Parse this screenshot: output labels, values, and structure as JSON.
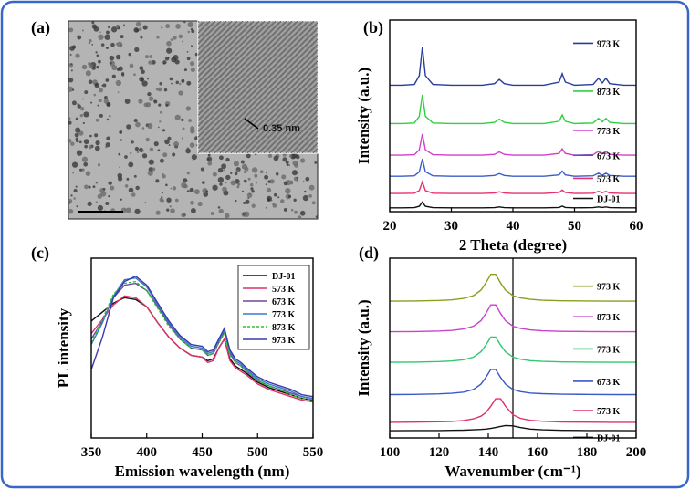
{
  "image_panel": {
    "label": "(a)",
    "annotation": "0.35 nm"
  },
  "chart_data": [
    {
      "type": "line",
      "label": "(b)",
      "xlabel": "2 Theta (degree)",
      "ylabel": "Intensity (a.u.)",
      "x": [
        20,
        22,
        24,
        24.8,
        25.3,
        25.8,
        27,
        30,
        35,
        37,
        37.8,
        38.6,
        40,
        45,
        47.5,
        48,
        48.5,
        50,
        53,
        53.9,
        54.5,
        55.1,
        55.7,
        58,
        60
      ],
      "xlim": [
        20,
        60
      ],
      "xticks": [
        20,
        30,
        40,
        50,
        60
      ],
      "ylim": [
        0,
        100
      ],
      "legend": "right",
      "series": [
        {
          "name": "DJ-01",
          "color": "#111111",
          "values": [
            2,
            2,
            2.1,
            2.8,
            5,
            2.8,
            2.1,
            2,
            2,
            2.1,
            2.5,
            2.1,
            2,
            2,
            2.2,
            2.9,
            2.2,
            2,
            2.1,
            2.5,
            2.2,
            2.5,
            2.1,
            2,
            2
          ]
        },
        {
          "name": "573 K",
          "color": "#e8306e",
          "values": [
            9.5,
            9.5,
            9.6,
            11,
            15.5,
            11,
            9.6,
            9.5,
            9.5,
            9.7,
            10.4,
            9.7,
            9.5,
            9.5,
            10,
            11.3,
            10,
            9.5,
            9.6,
            10.6,
            9.9,
            10.6,
            9.7,
            9.5,
            9.5
          ]
        },
        {
          "name": "673 K",
          "color": "#3a5ec8",
          "values": [
            18.5,
            18.5,
            18.7,
            20.8,
            27.5,
            20.8,
            18.7,
            18.5,
            18.5,
            18.9,
            19.9,
            18.9,
            18.5,
            18.5,
            19.2,
            21.2,
            19.2,
            18.5,
            18.7,
            20.1,
            19,
            20.1,
            18.9,
            18.5,
            18.5
          ]
        },
        {
          "name": "773 K",
          "color": "#d040c8",
          "values": [
            29.5,
            29.5,
            29.7,
            32.3,
            40.5,
            32.3,
            29.7,
            29.5,
            29.5,
            29.9,
            31.2,
            29.9,
            29.5,
            29.5,
            30.4,
            32.8,
            30.4,
            29.5,
            29.7,
            31.5,
            30.2,
            31.5,
            29.9,
            29.5,
            29.5
          ]
        },
        {
          "name": "873 K",
          "color": "#30d040",
          "values": [
            46,
            46,
            46.3,
            49.8,
            61,
            49.8,
            46.3,
            46,
            46,
            46.6,
            48.3,
            46.6,
            46,
            46,
            47.2,
            50.5,
            47.2,
            46,
            46.3,
            48.7,
            46.9,
            48.7,
            46.6,
            46,
            46
          ]
        },
        {
          "name": "973 K",
          "color": "#283c9a",
          "values": [
            66,
            66,
            66.4,
            71,
            86,
            71,
            66.4,
            66,
            66,
            66.8,
            69,
            66.8,
            66,
            66,
            67.6,
            72,
            67.6,
            66,
            66.4,
            69.6,
            67.2,
            69.6,
            66.8,
            66,
            66
          ]
        }
      ]
    },
    {
      "type": "line",
      "label": "(c)",
      "xlabel": "Emission wavelength (nm)",
      "ylabel": "PL intensity",
      "x": [
        350,
        360,
        370,
        380,
        390,
        400,
        410,
        420,
        430,
        440,
        450,
        455,
        460,
        465,
        470,
        475,
        480,
        485,
        490,
        500,
        510,
        520,
        530,
        540,
        550
      ],
      "xlim": [
        350,
        550
      ],
      "xticks": [
        350,
        400,
        450,
        500,
        550
      ],
      "ylim": [
        0,
        100
      ],
      "legend": "upper right",
      "series": [
        {
          "name": "DJ-01",
          "color": "#111111",
          "values": [
            65,
            70,
            75,
            78,
            77,
            73,
            64,
            56,
            50,
            46,
            45,
            43,
            44,
            50,
            55,
            44,
            40,
            38,
            36,
            31,
            28,
            26,
            24,
            22,
            21
          ]
        },
        {
          "name": "573 K",
          "color": "#e0306a",
          "values": [
            58,
            66,
            74,
            79,
            78,
            73,
            64,
            56,
            50,
            46,
            45,
            42,
            43,
            50,
            55,
            43,
            39,
            37,
            35,
            30,
            27,
            25,
            23,
            21,
            20
          ]
        },
        {
          "name": "673 K",
          "color": "#6a4a9a",
          "values": [
            55,
            65,
            78,
            85,
            86,
            82,
            73,
            63,
            55,
            50,
            49,
            46,
            47,
            53,
            59,
            47,
            42,
            40,
            37,
            32,
            29,
            27,
            25,
            23,
            22
          ]
        },
        {
          "name": "773 K",
          "color": "#3a7ac8",
          "values": [
            52,
            64,
            79,
            88,
            89,
            84,
            74,
            64,
            56,
            51,
            50,
            47,
            48,
            54,
            60,
            48,
            43,
            41,
            38,
            33,
            30,
            28,
            26,
            23,
            22
          ]
        },
        {
          "name": "873 K",
          "color": "#30c030",
          "dashed": true,
          "values": [
            53,
            66,
            80,
            86,
            87,
            82,
            72,
            62,
            55,
            50,
            49,
            46,
            47,
            53,
            58,
            46,
            42,
            40,
            37,
            32,
            29,
            27,
            24,
            22,
            21
          ]
        },
        {
          "name": "973 K",
          "color": "#3a3ab0",
          "values": [
            38,
            56,
            78,
            87,
            90,
            85,
            75,
            65,
            57,
            52,
            51,
            48,
            49,
            55,
            61,
            49,
            44,
            42,
            39,
            34,
            31,
            29,
            27,
            24,
            23
          ]
        }
      ]
    },
    {
      "type": "line",
      "label": "(d)",
      "xlabel": "Wavenumber (cm⁻¹)",
      "ylabel": "Intensity (a.u.)",
      "x": [
        100,
        110,
        120,
        125,
        130,
        134,
        137,
        139,
        141,
        143,
        145,
        147,
        150,
        153,
        157,
        162,
        170,
        180,
        190,
        200
      ],
      "xlim": [
        100,
        200
      ],
      "xticks": [
        100,
        120,
        140,
        160,
        180,
        200
      ],
      "ylim": [
        0,
        100
      ],
      "legend": "right",
      "vline": 150,
      "series": [
        {
          "name": "DJ-01",
          "color": "#111111",
          "values": [
            4,
            4.1,
            4.1,
            4.2,
            4.3,
            4.5,
            4.7,
            4.9,
            5.3,
            5.8,
            6.4,
            6.9,
            6.7,
            5.8,
            4.9,
            4.5,
            4.2,
            4.1,
            4.1,
            4
          ]
        },
        {
          "name": "573 K",
          "color": "#e0306a",
          "values": [
            8.7,
            8.8,
            9,
            9.2,
            9.7,
            10.6,
            12.1,
            14.1,
            17.6,
            21.8,
            21.8,
            17.6,
            12.9,
            10.9,
            9.8,
            9.3,
            8.9,
            8.8,
            8.7,
            8.7
          ]
        },
        {
          "name": "673 K",
          "color": "#3a5ac8",
          "values": [
            24.1,
            24.2,
            24.5,
            24.8,
            25.5,
            27,
            29.9,
            33.6,
            38.1,
            38.1,
            33.6,
            29.9,
            27,
            25.8,
            25,
            24.6,
            24.3,
            24.2,
            24.1,
            24.1
          ]
        },
        {
          "name": "773 K",
          "color": "#30c870",
          "values": [
            42.1,
            42.2,
            42.5,
            42.8,
            43.5,
            45,
            47.9,
            51.6,
            56.1,
            56.1,
            51.6,
            47.9,
            45,
            43.8,
            43,
            42.6,
            42.3,
            42.2,
            42.1,
            42.1
          ]
        },
        {
          "name": "873 K",
          "color": "#c844c8",
          "values": [
            59.1,
            59.2,
            59.5,
            59.8,
            60.6,
            62.2,
            65.2,
            69.2,
            74,
            74,
            69.2,
            65.2,
            62.2,
            60.9,
            60.1,
            59.6,
            59.3,
            59.2,
            59.1,
            59.1
          ]
        },
        {
          "name": "973 K",
          "color": "#88a020",
          "values": [
            76.1,
            76.2,
            76.5,
            76.8,
            77.6,
            79.2,
            82.2,
            86.2,
            91,
            91,
            86.2,
            82.2,
            79.2,
            77.9,
            77.1,
            76.6,
            76.3,
            76.2,
            76.1,
            76.1
          ]
        }
      ]
    }
  ]
}
